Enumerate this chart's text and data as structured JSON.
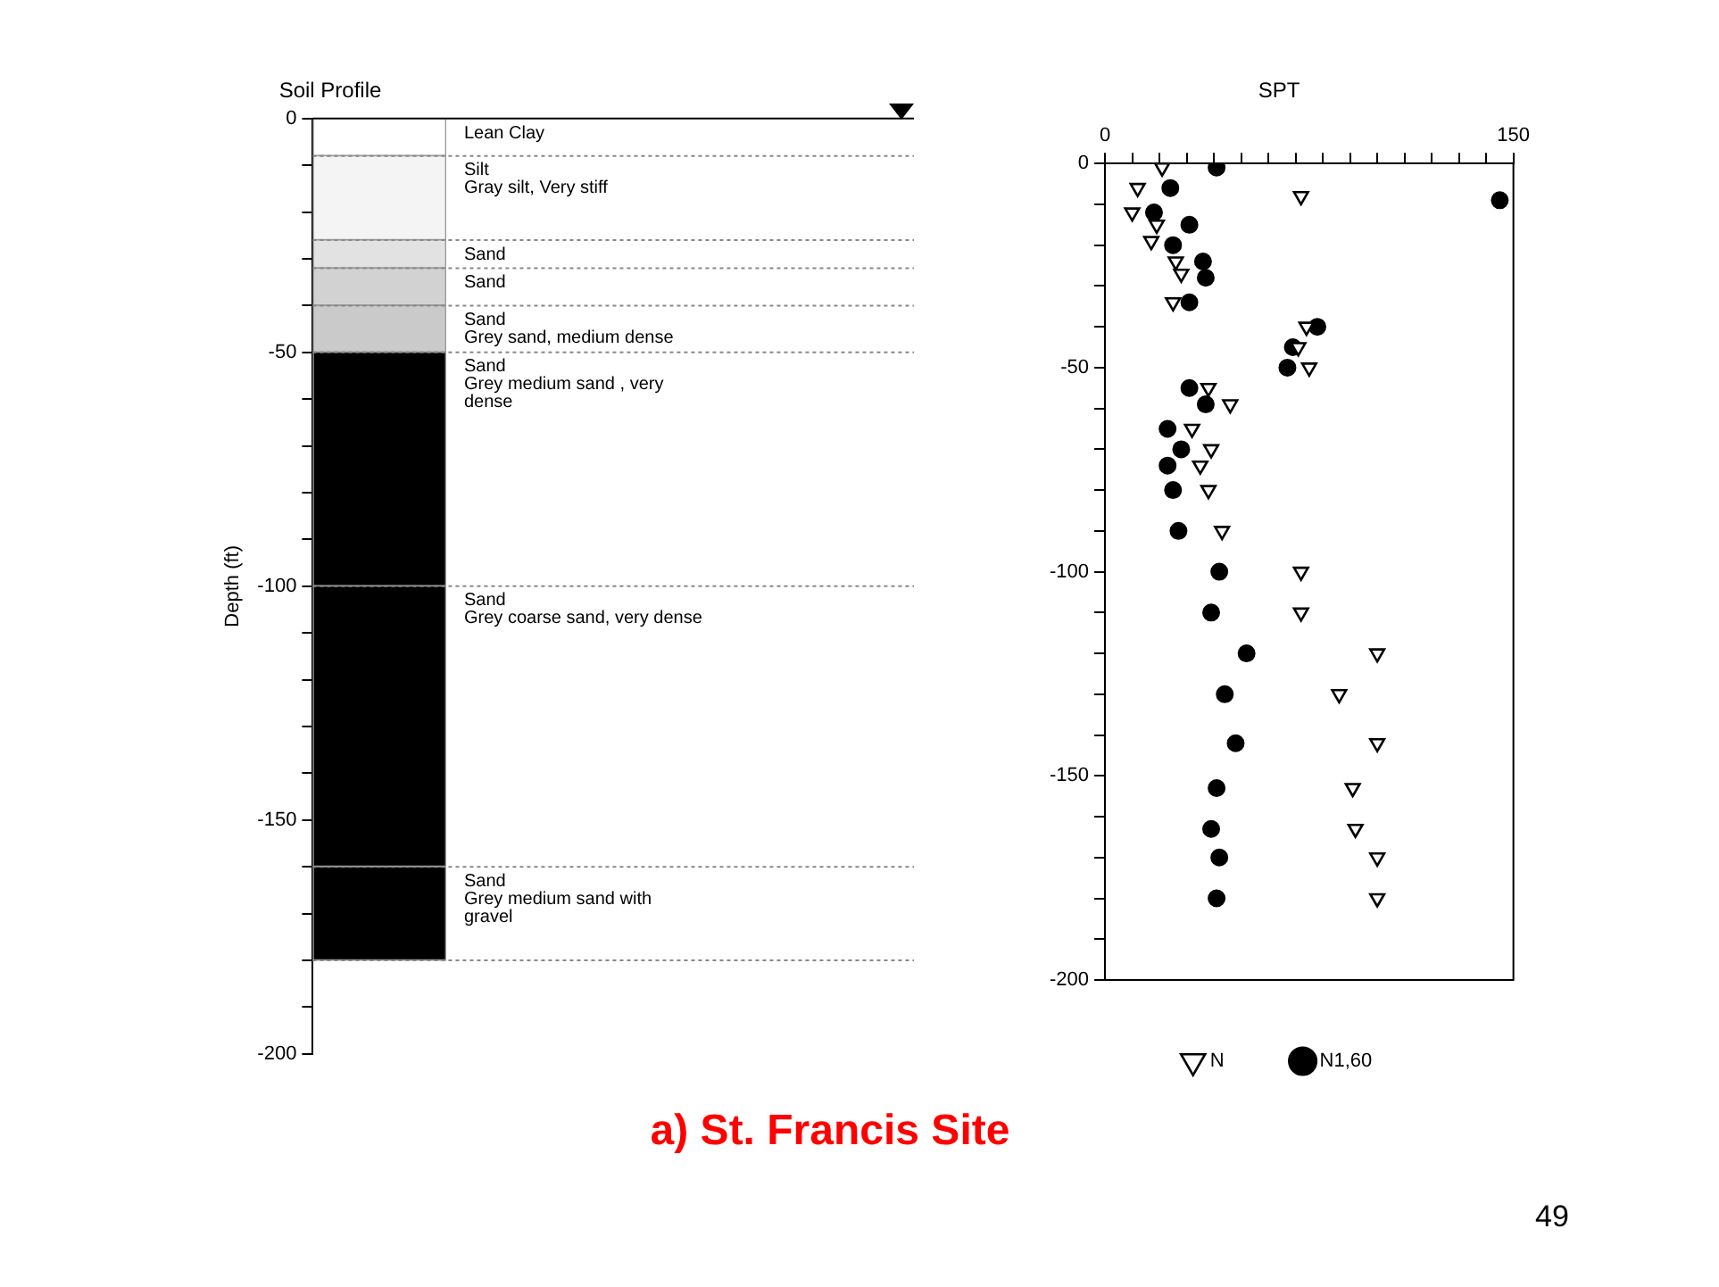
{
  "chart_data": [
    {
      "type": "bar",
      "stacked": true,
      "title": "Soil Profile",
      "ylabel": "Depth (ft)",
      "categories": [
        null
      ],
      "tick_labels": "y",
      "legend": false,
      "ref_lines": [
        {
          "axis": "y",
          "value": 0,
          "line_style": "solid"
        },
        {
          "axis": "y",
          "value": -8,
          "line_style": "dotted"
        },
        {
          "axis": "y",
          "value": -26,
          "line_style": "dotted"
        },
        {
          "axis": "y",
          "value": -32,
          "line_style": "dotted"
        },
        {
          "axis": "y",
          "value": -40,
          "line_style": "dotted"
        },
        {
          "axis": "y",
          "value": -50,
          "line_style": "dotted"
        },
        {
          "axis": "y",
          "value": -100,
          "line_style": "dotted"
        },
        {
          "axis": "y",
          "value": -160,
          "line_style": "dotted"
        },
        {
          "axis": "y",
          "value": -180,
          "line_style": "dotted"
        }
      ],
      "ylim": [
        -200,
        0
      ],
      "yticks": [
        0,
        {
          "value": -10,
          "label": null
        },
        {
          "value": -20,
          "label": null
        },
        {
          "value": -30,
          "label": null
        },
        {
          "value": -40,
          "label": null
        },
        -50,
        {
          "value": -60,
          "label": null
        },
        {
          "value": -70,
          "label": null
        },
        {
          "value": -80,
          "label": null
        },
        {
          "value": -90,
          "label": null
        },
        -100,
        {
          "value": -110,
          "label": null
        },
        {
          "value": -120,
          "label": null
        },
        {
          "value": -130,
          "label": null
        },
        {
          "value": -140,
          "label": null
        },
        -150,
        {
          "value": -160,
          "label": null
        },
        {
          "value": -170,
          "label": null
        },
        {
          "value": -180,
          "label": null
        },
        {
          "value": -190,
          "label": null
        },
        -200
      ],
      "series": [
        {
          "name": "Lean Clay",
          "color": "#ffffff",
          "values": [
            -8
          ]
        },
        {
          "name": "Silt\nGray silt, Very stiff",
          "color": "#f4f4f4",
          "values": [
            -18
          ]
        },
        {
          "name": "Sand",
          "color": "#e2e2e2",
          "values": [
            -6
          ]
        },
        {
          "name": "Sand",
          "color": "#d2d2d2",
          "values": [
            -8
          ]
        },
        {
          "name": "Sand\nGrey sand, medium dense",
          "color": "#cacaca",
          "values": [
            -10
          ]
        },
        {
          "name": "Sand\nGrey medium sand , very dense",
          "color": "#000000",
          "values": [
            -50
          ]
        },
        {
          "name": "Sand\nGrey coarse sand, very dense",
          "color": "#000000",
          "values": [
            -60
          ]
        },
        {
          "name": "Sand\nGrey medium sand with gravel",
          "color": "#000000",
          "values": [
            -20
          ]
        }
      ]
    },
    {
      "type": "scatter",
      "title": "SPT",
      "legend": "bottom",
      "xlim": [
        0,
        150
      ],
      "xticks": [
        0,
        {
          "value": 10,
          "label": null
        },
        {
          "value": 20,
          "label": null
        },
        {
          "value": 30,
          "label": null
        },
        {
          "value": 40,
          "label": null
        },
        {
          "value": 50,
          "label": null
        },
        {
          "value": 60,
          "label": null
        },
        {
          "value": 70,
          "label": null
        },
        {
          "value": 80,
          "label": null
        },
        {
          "value": 90,
          "label": null
        },
        {
          "value": 100,
          "label": null
        },
        {
          "value": 110,
          "label": null
        },
        {
          "value": 120,
          "label": null
        },
        {
          "value": 130,
          "label": null
        },
        {
          "value": 140,
          "label": null
        },
        150
      ],
      "ylim": [
        -200,
        0
      ],
      "yticks": [
        0,
        {
          "value": -10,
          "label": null
        },
        {
          "value": -20,
          "label": null
        },
        {
          "value": -30,
          "label": null
        },
        {
          "value": -40,
          "label": null
        },
        -50,
        {
          "value": -60,
          "label": null
        },
        {
          "value": -70,
          "label": null
        },
        {
          "value": -80,
          "label": null
        },
        {
          "value": -90,
          "label": null
        },
        -100,
        {
          "value": -110,
          "label": null
        },
        {
          "value": -120,
          "label": null
        },
        {
          "value": -130,
          "label": null
        },
        {
          "value": -140,
          "label": null
        },
        -150,
        {
          "value": -160,
          "label": null
        },
        {
          "value": -170,
          "label": null
        },
        {
          "value": -180,
          "label": null
        },
        {
          "value": -190,
          "label": null
        },
        -200
      ],
      "series": [
        {
          "name": "N",
          "color": "#000000",
          "marker": "triangle",
          "x": [
            21,
            12,
            72,
            10,
            19,
            17,
            26,
            28,
            25,
            74,
            71,
            75,
            38,
            46,
            32,
            39,
            35,
            38,
            43,
            72,
            72,
            100,
            86,
            100,
            91,
            92,
            100,
            100
          ],
          "values": [
            -1,
            -6,
            -8,
            -12,
            -15,
            -19,
            -24,
            -27,
            -34,
            -40,
            -45,
            -50,
            -55,
            -59,
            -65,
            -70,
            -74,
            -80,
            -90,
            -100,
            -110,
            -120,
            -130,
            -142,
            -153,
            -163,
            -170,
            -180
          ]
        },
        {
          "name": "N1,60",
          "color": "#000000",
          "marker": "circle",
          "x": [
            41,
            24,
            145,
            18,
            31,
            25,
            36,
            37,
            31,
            78,
            69,
            67,
            31,
            37,
            23,
            28,
            23,
            25,
            27,
            42,
            39,
            52,
            44,
            48,
            41,
            39,
            42,
            41
          ],
          "values": [
            -1,
            -6,
            -9,
            -12,
            -15,
            -20,
            -24,
            -28,
            -34,
            -40,
            -45,
            -50,
            -55,
            -59,
            -65,
            -70,
            -74,
            -80,
            -90,
            -100,
            -110,
            -120,
            -130,
            -142,
            -153,
            -163,
            -170,
            -180
          ]
        }
      ],
      "annotations": [
        "a) St. Francis Site",
        "49"
      ]
    }
  ]
}
